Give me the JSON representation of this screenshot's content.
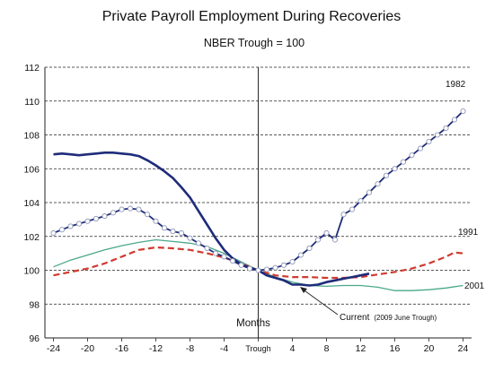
{
  "chart_data": {
    "type": "line",
    "title": "Private Payroll Employment During Recoveries",
    "subtitle": "NBER Trough = 100",
    "xlabel": "Months",
    "ylabel": "",
    "xlim": [
      -25,
      25
    ],
    "ylim": [
      96,
      112
    ],
    "y_ticks": [
      96,
      98,
      100,
      102,
      104,
      106,
      108,
      110,
      112
    ],
    "x_ticks": [
      -24,
      -20,
      -16,
      -12,
      -8,
      -4,
      0,
      4,
      8,
      12,
      16,
      20,
      24
    ],
    "x_tick_labels": [
      "-24",
      "-20",
      "-16",
      "-12",
      "-8",
      "-4",
      "Trough",
      "4",
      "8",
      "12",
      "16",
      "20",
      "24"
    ],
    "grid": "horizontal dashed",
    "trough_line_x": 0,
    "series": [
      {
        "name": "1982",
        "color": "#1f2c7a",
        "style": "solid-with-circles",
        "x": [
          -24,
          -23,
          -22,
          -21,
          -20,
          -19,
          -18,
          -17,
          -16,
          -15,
          -14,
          -13,
          -12,
          -11,
          -10,
          -9,
          -8,
          -7,
          -6,
          -5,
          -4,
          -3,
          -2,
          -1,
          0,
          1,
          2,
          3,
          4,
          5,
          6,
          7,
          8,
          9,
          10,
          11,
          12,
          13,
          14,
          15,
          16,
          17,
          18,
          19,
          20,
          21,
          22,
          23,
          24
        ],
        "y": [
          102.2,
          102.4,
          102.6,
          102.75,
          102.9,
          103.05,
          103.2,
          103.4,
          103.6,
          103.65,
          103.6,
          103.3,
          102.9,
          102.5,
          102.3,
          102.2,
          101.9,
          101.6,
          101.3,
          101.0,
          100.8,
          100.55,
          100.3,
          100.1,
          100.0,
          100.05,
          100.15,
          100.3,
          100.5,
          100.9,
          101.3,
          101.8,
          102.2,
          101.8,
          103.3,
          103.6,
          104.1,
          104.6,
          105.1,
          105.6,
          106.0,
          106.4,
          106.8,
          107.2,
          107.6,
          108.0,
          108.4,
          108.9,
          109.4
        ]
      },
      {
        "name": "Current (2009 June Trough)",
        "color": "#1f2c7a",
        "style": "solid-thick",
        "x": [
          -24,
          -23,
          -22,
          -21,
          -20,
          -19,
          -18,
          -17,
          -16,
          -15,
          -14,
          -13,
          -12,
          -11,
          -10,
          -9,
          -8,
          -7,
          -6,
          -5,
          -4,
          -3,
          -2,
          -1,
          0,
          1,
          2,
          3,
          4,
          5,
          6,
          7,
          8,
          9,
          10,
          11,
          12,
          13
        ],
        "y": [
          106.85,
          106.9,
          106.85,
          106.8,
          106.85,
          106.9,
          106.95,
          106.95,
          106.9,
          106.85,
          106.75,
          106.5,
          106.2,
          105.85,
          105.45,
          104.9,
          104.3,
          103.5,
          102.7,
          101.9,
          101.2,
          100.7,
          100.35,
          100.15,
          100.0,
          99.7,
          99.55,
          99.4,
          99.15,
          99.15,
          99.1,
          99.15,
          99.3,
          99.4,
          99.5,
          99.6,
          99.7,
          99.8
        ]
      },
      {
        "name": "1991",
        "color": "#d03a2f",
        "style": "dashed",
        "x": [
          -24,
          -22,
          -20,
          -18,
          -16,
          -14,
          -12,
          -10,
          -8,
          -6,
          -4,
          -2,
          0,
          2,
          4,
          6,
          8,
          10,
          12,
          14,
          16,
          18,
          20,
          22,
          23,
          24
        ],
        "y": [
          99.7,
          99.9,
          100.1,
          100.4,
          100.8,
          101.2,
          101.35,
          101.3,
          101.2,
          101.0,
          100.75,
          100.4,
          100.0,
          99.7,
          99.6,
          99.6,
          99.55,
          99.55,
          99.6,
          99.75,
          99.9,
          100.1,
          100.4,
          100.8,
          101.05,
          101.0
        ]
      },
      {
        "name": "2001",
        "color": "#4aa88a",
        "style": "solid-thin",
        "x": [
          -24,
          -22,
          -20,
          -18,
          -16,
          -14,
          -12,
          -10,
          -8,
          -6,
          -4,
          -2,
          0,
          2,
          4,
          6,
          8,
          10,
          12,
          14,
          16,
          18,
          20,
          22,
          24
        ],
        "y": [
          100.2,
          100.6,
          100.9,
          101.2,
          101.45,
          101.65,
          101.8,
          101.7,
          101.6,
          101.4,
          101.0,
          100.5,
          100.0,
          99.6,
          99.3,
          99.1,
          99.05,
          99.1,
          99.1,
          99.0,
          98.8,
          98.8,
          98.85,
          98.95,
          99.1
        ]
      }
    ],
    "annotations": {
      "label_1982": "1982",
      "label_1991": "1991",
      "label_2001": "2001",
      "label_current_main": "Current",
      "label_current_detail": "(2009 June Trough)"
    }
  }
}
